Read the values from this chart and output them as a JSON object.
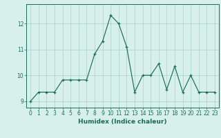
{
  "x": [
    0,
    1,
    2,
    3,
    4,
    5,
    6,
    7,
    8,
    9,
    10,
    11,
    12,
    13,
    14,
    15,
    16,
    17,
    18,
    19,
    20,
    21,
    22,
    23
  ],
  "y": [
    9.0,
    9.35,
    9.35,
    9.35,
    9.82,
    9.82,
    9.82,
    9.82,
    10.82,
    11.32,
    12.32,
    12.0,
    11.1,
    9.35,
    10.0,
    10.0,
    10.45,
    9.45,
    10.35,
    9.35,
    10.0,
    9.35,
    9.35,
    9.35
  ],
  "line_color": "#1a6b5a",
  "marker": "+",
  "bg_color": "#d8f0ec",
  "grid_color": "#b0d8d0",
  "xlabel": "Humidex (Indice chaleur)",
  "xlim": [
    -0.5,
    23.5
  ],
  "ylim": [
    8.75,
    12.75
  ],
  "yticks": [
    9,
    10,
    11,
    12
  ],
  "tick_fontsize": 5.5,
  "label_fontsize": 6.5
}
